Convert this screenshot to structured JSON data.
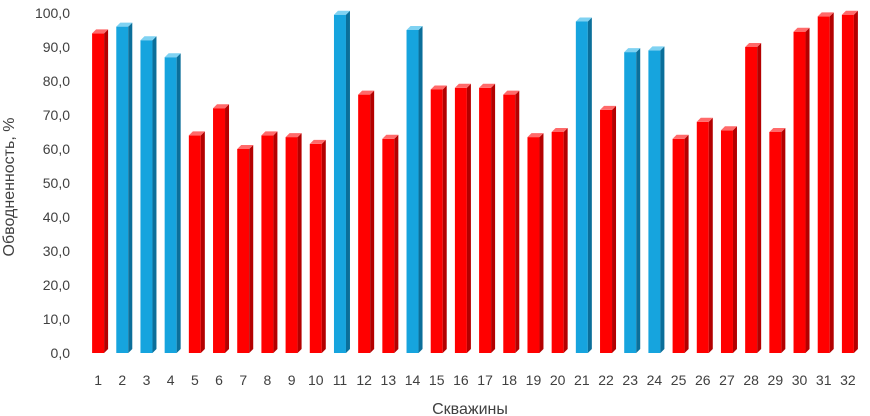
{
  "chart_data": {
    "type": "bar",
    "xlabel": "Скважины",
    "ylabel": "Обводненность, %",
    "ylim": [
      0,
      100
    ],
    "yticks": [
      "0,0",
      "10,0",
      "20,0",
      "30,0",
      "40,0",
      "50,0",
      "60,0",
      "70,0",
      "80,0",
      "90,0",
      "100,0"
    ],
    "categories": [
      "1",
      "2",
      "3",
      "4",
      "5",
      "6",
      "7",
      "8",
      "9",
      "10",
      "11",
      "12",
      "13",
      "14",
      "15",
      "16",
      "17",
      "18",
      "19",
      "20",
      "21",
      "22",
      "23",
      "24",
      "25",
      "26",
      "27",
      "28",
      "29",
      "30",
      "31",
      "32"
    ],
    "values": [
      94,
      96,
      92,
      87,
      64,
      72,
      60,
      64,
      63.5,
      61.5,
      99.5,
      76,
      63,
      95,
      77.5,
      78,
      78,
      76,
      63.5,
      65,
      97.5,
      71.5,
      88.5,
      89,
      63,
      68,
      65.5,
      90,
      65,
      94.5,
      99,
      99.5
    ],
    "bar_colors": [
      "red",
      "blue",
      "blue",
      "blue",
      "red",
      "red",
      "red",
      "red",
      "red",
      "red",
      "blue",
      "red",
      "red",
      "blue",
      "red",
      "red",
      "red",
      "red",
      "red",
      "red",
      "blue",
      "red",
      "blue",
      "blue",
      "red",
      "red",
      "red",
      "red",
      "red",
      "red",
      "red",
      "red"
    ],
    "colors": {
      "red": {
        "front": "#ff0000",
        "side": "#b40000",
        "top": "#ff6a6a"
      },
      "blue": {
        "front": "#16a4de",
        "side": "#0b6f9a",
        "top": "#7fd2f2"
      }
    },
    "grid": false,
    "legend": "none"
  }
}
